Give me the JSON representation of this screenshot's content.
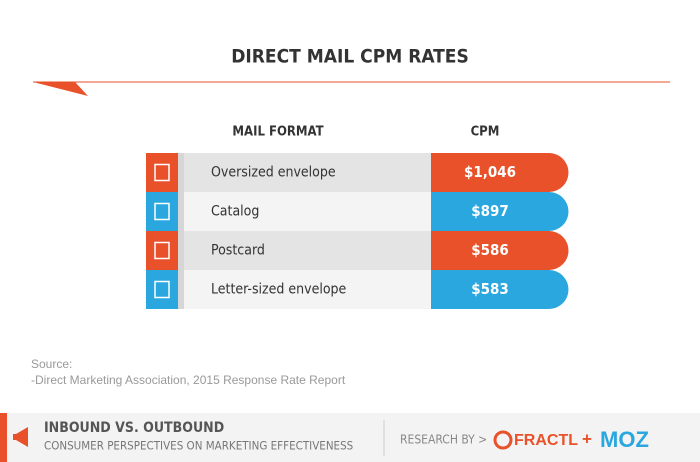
{
  "title": "DIRECT MAIL CPM RATES",
  "table": {
    "headers": [
      "MAIL FORMAT",
      "CPM"
    ],
    "rows": [
      [
        "Oversized envelope",
        "$1,046"
      ],
      [
        "Catalog",
        "$897"
      ],
      [
        "Postcard",
        "$586"
      ],
      [
        "Letter-sized envelope",
        "$583"
      ]
    ]
  },
  "source": {
    "label": "Source:",
    "text": "-Direct Marketing Association, 2015 Response Rate Report"
  },
  "footer": {
    "title": "INBOUND VS. OUTBOUND",
    "subtitle": "CONSUMER PERSPECTIVES ON MARKETING EFFECTIVENESS",
    "research_by": "RESEARCH BY >",
    "brand1": "FRACTL",
    "plus": "+",
    "brand2": "MOZ"
  }
}
